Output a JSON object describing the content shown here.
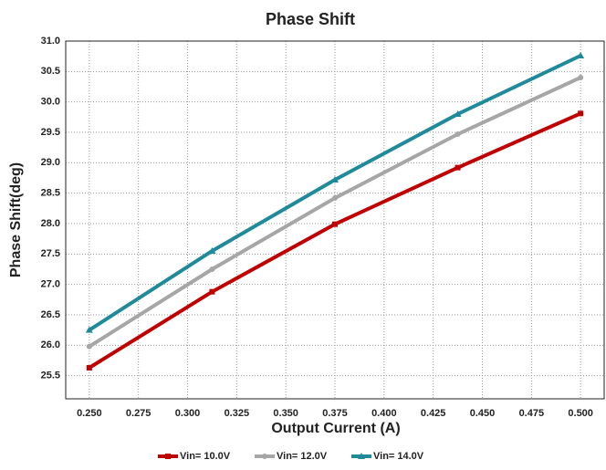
{
  "chart_data": {
    "type": "line",
    "title": "Phase Shift",
    "xlabel": "Output Current (A)",
    "ylabel": "Phase Shift(deg)",
    "x": [
      0.25,
      0.3125,
      0.375,
      0.4375,
      0.5
    ],
    "series": [
      {
        "name": "Vin= 10.0V",
        "color": "#c00000",
        "marker": "square",
        "values": [
          25.63,
          26.88,
          27.99,
          28.92,
          29.81
        ]
      },
      {
        "name": "Vin= 12.0V",
        "color": "#a6a6a6",
        "marker": "circle",
        "values": [
          25.98,
          27.25,
          28.42,
          29.47,
          30.4
        ]
      },
      {
        "name": "Vin= 14.0V",
        "color": "#1f8a9a",
        "marker": "triangle",
        "values": [
          26.25,
          27.55,
          28.72,
          29.8,
          30.76
        ]
      }
    ],
    "xlim": [
      0.238,
      0.512
    ],
    "xticks": [
      {
        "value": 0.25,
        "label": "0.250"
      },
      {
        "value": 0.275,
        "label": "0.275"
      },
      {
        "value": 0.3,
        "label": "0.300"
      },
      {
        "value": 0.325,
        "label": "0.325"
      },
      {
        "value": 0.35,
        "label": "0.350"
      },
      {
        "value": 0.375,
        "label": "0.375"
      },
      {
        "value": 0.4,
        "label": "0.400"
      },
      {
        "value": 0.425,
        "label": "0.425"
      },
      {
        "value": 0.45,
        "label": "0.450"
      },
      {
        "value": 0.475,
        "label": "0.475"
      },
      {
        "value": 0.5,
        "label": "0.500"
      }
    ],
    "ylim": [
      25.12,
      31.0
    ],
    "yticks": [
      25.5,
      {
        "value": 26,
        "label": "26.0"
      },
      26.5,
      {
        "value": 27,
        "label": "27.0"
      },
      27.5,
      {
        "value": 28,
        "label": "28.0"
      },
      28.5,
      {
        "value": 29,
        "label": "29.0"
      },
      29.5,
      {
        "value": 30,
        "label": "30.0"
      },
      30.5,
      {
        "value": 31,
        "label": "31.0"
      }
    ],
    "grid": true,
    "legend": "bottom"
  }
}
